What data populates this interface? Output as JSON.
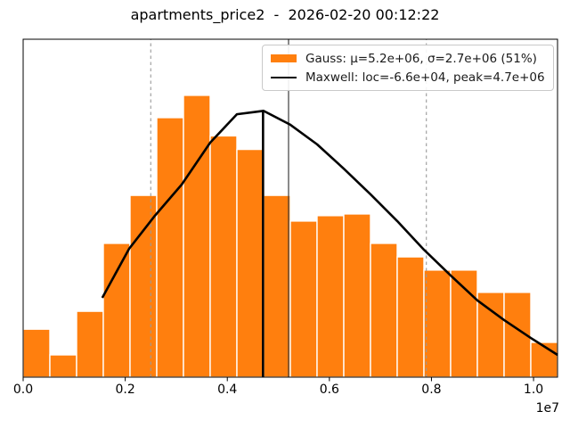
{
  "title": "apartments_price2  -  2026-02-20 00:12:22",
  "legend": {
    "items": [
      {
        "swatch": "orange-patch",
        "label": "Gauss: μ=5.2e+06, σ=2.7e+06 (51%)"
      },
      {
        "swatch": "black-line",
        "label": "Maxwell: loc=-6.6e+04, peak=4.7e+06"
      }
    ]
  },
  "colors": {
    "bar_fill": "#ff7f0e",
    "bar_edge": "#ffffff",
    "curve": "#000000",
    "mean_line": "#3d3d3d",
    "sigma_line": "#999999",
    "spine": "#000000",
    "legend_border": "#c9c9c9",
    "background": "#ffffff"
  },
  "chart_data": {
    "type": "histogram+line",
    "title": "apartments_price2  -  2026-02-20 00:12:22",
    "xlabel": "",
    "ylabel": "",
    "grid": "vertical-dashed-sigma-lines-only",
    "legend_position": "upper right",
    "x_axis": {
      "offset_text": "1e7",
      "xlim": [
        0,
        10470000
      ],
      "ticks": [
        {
          "value": 0,
          "label": "0.0"
        },
        {
          "value": 2000000,
          "label": "0.2"
        },
        {
          "value": 4000000,
          "label": "0.4"
        },
        {
          "value": 6000000,
          "label": "0.6"
        },
        {
          "value": 8000000,
          "label": "0.8"
        },
        {
          "value": 10000000,
          "label": "1.0"
        }
      ]
    },
    "y_axis": {
      "tick_labels_shown": false
    },
    "histogram": {
      "series_name": "Gauss: μ=5.2e+06, σ=2.7e+06 (51%)",
      "mu": 5200000,
      "sigma": 2700000,
      "pct": "51%",
      "bin_start": 0,
      "bin_width": 523500,
      "n_bins": 20,
      "heights_frac_of_plot": [
        0.142,
        0.066,
        0.195,
        0.396,
        0.538,
        0.768,
        0.834,
        0.714,
        0.674,
        0.538,
        0.462,
        0.478,
        0.483,
        0.396,
        0.356,
        0.317,
        0.317,
        0.251,
        0.251,
        0.103
      ]
    },
    "maxwell_curve": {
      "series_name": "Maxwell: loc=-6.6e+04, peak=4.7e+06",
      "loc": -66000,
      "peak_x": 4700000,
      "points": [
        [
          1550000,
          0.235
        ],
        [
          2076000,
          0.38
        ],
        [
          2582000,
          0.478
        ],
        [
          3106000,
          0.57
        ],
        [
          3664000,
          0.694
        ],
        [
          4188000,
          0.778
        ],
        [
          4711500,
          0.788
        ],
        [
          5235000,
          0.747
        ],
        [
          5759000,
          0.689
        ],
        [
          6282000,
          0.617
        ],
        [
          6806000,
          0.541
        ],
        [
          7329000,
          0.462
        ],
        [
          7853000,
          0.377
        ],
        [
          8376000,
          0.301
        ],
        [
          8900000,
          0.227
        ],
        [
          9423000,
          0.169
        ],
        [
          9947000,
          0.116
        ],
        [
          10470000,
          0.066
        ]
      ]
    },
    "vlines": [
      {
        "name": "maxwell-peak-marker-line",
        "x": 4700000,
        "style": "solid",
        "color": "#000000",
        "width": 2.6,
        "top_frac": 0.788
      },
      {
        "name": "gauss-mean-line",
        "x": 5200000,
        "style": "solid",
        "color": "#3d3d3d",
        "width": 1.2,
        "top_frac": 1
      },
      {
        "name": "gauss-minus-sigma-line",
        "x": 2500000,
        "style": "dashed",
        "color": "#999999",
        "width": 1.1,
        "top_frac": 1
      },
      {
        "name": "gauss-plus-sigma-line",
        "x": 7900000,
        "style": "dashed",
        "color": "#999999",
        "width": 1.1,
        "top_frac": 1
      }
    ]
  }
}
